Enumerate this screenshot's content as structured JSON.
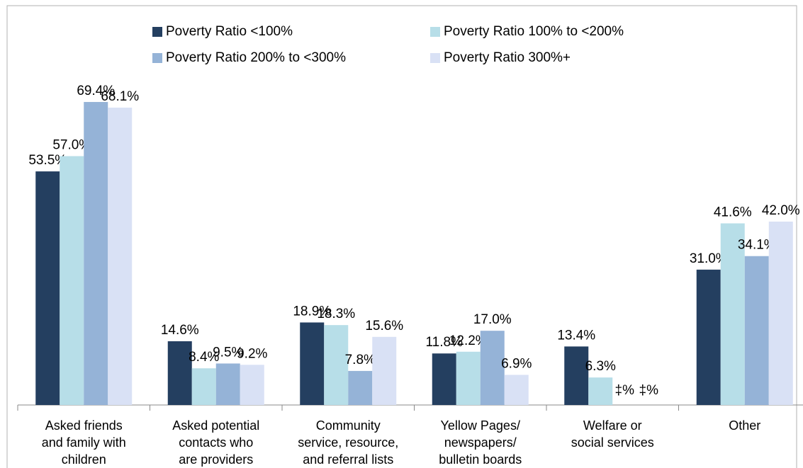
{
  "chart_data": {
    "type": "bar",
    "categories": [
      [
        "Asked friends",
        "and family with",
        "children"
      ],
      [
        "Asked potential",
        "contacts who",
        "are providers"
      ],
      [
        "Community",
        "service, resource,",
        "and referral lists"
      ],
      [
        "Yellow Pages/",
        "newspapers/",
        "bulletin boards"
      ],
      [
        "Welfare or",
        "social services"
      ],
      [
        "Other"
      ]
    ],
    "series": [
      {
        "name": "Poverty Ratio <100%",
        "color": "#243f60",
        "values": [
          53.5,
          14.6,
          18.9,
          11.8,
          13.4,
          31.0
        ],
        "value_labels": [
          "53.5%",
          "14.6%",
          "18.9%",
          "11.8%",
          "13.4%",
          "31.0%"
        ]
      },
      {
        "name": "Poverty Ratio 100% to <200%",
        "color": "#b7dee8",
        "values": [
          57.0,
          8.4,
          18.3,
          12.2,
          6.3,
          41.6
        ],
        "value_labels": [
          "57.0%",
          "8.4%",
          "18.3%",
          "12.2%",
          "6.3%",
          "41.6%"
        ]
      },
      {
        "name": "Poverty Ratio 200% to <300%",
        "color": "#95b3d7",
        "values": [
          69.4,
          9.5,
          7.8,
          17.0,
          null,
          34.1
        ],
        "value_labels": [
          "69.4%",
          "9.5%",
          "7.8%",
          "17.0%",
          "‡%",
          "34.1%"
        ]
      },
      {
        "name": "Poverty Ratio 300%+",
        "color": "#d9e1f5",
        "values": [
          68.1,
          9.2,
          15.6,
          6.9,
          null,
          42.0
        ],
        "value_labels": [
          "68.1%",
          "9.2%",
          "15.6%",
          "6.9%",
          "‡%",
          "42.0%"
        ]
      }
    ],
    "ylim": [
      0,
      90
    ],
    "legend": "top"
  }
}
